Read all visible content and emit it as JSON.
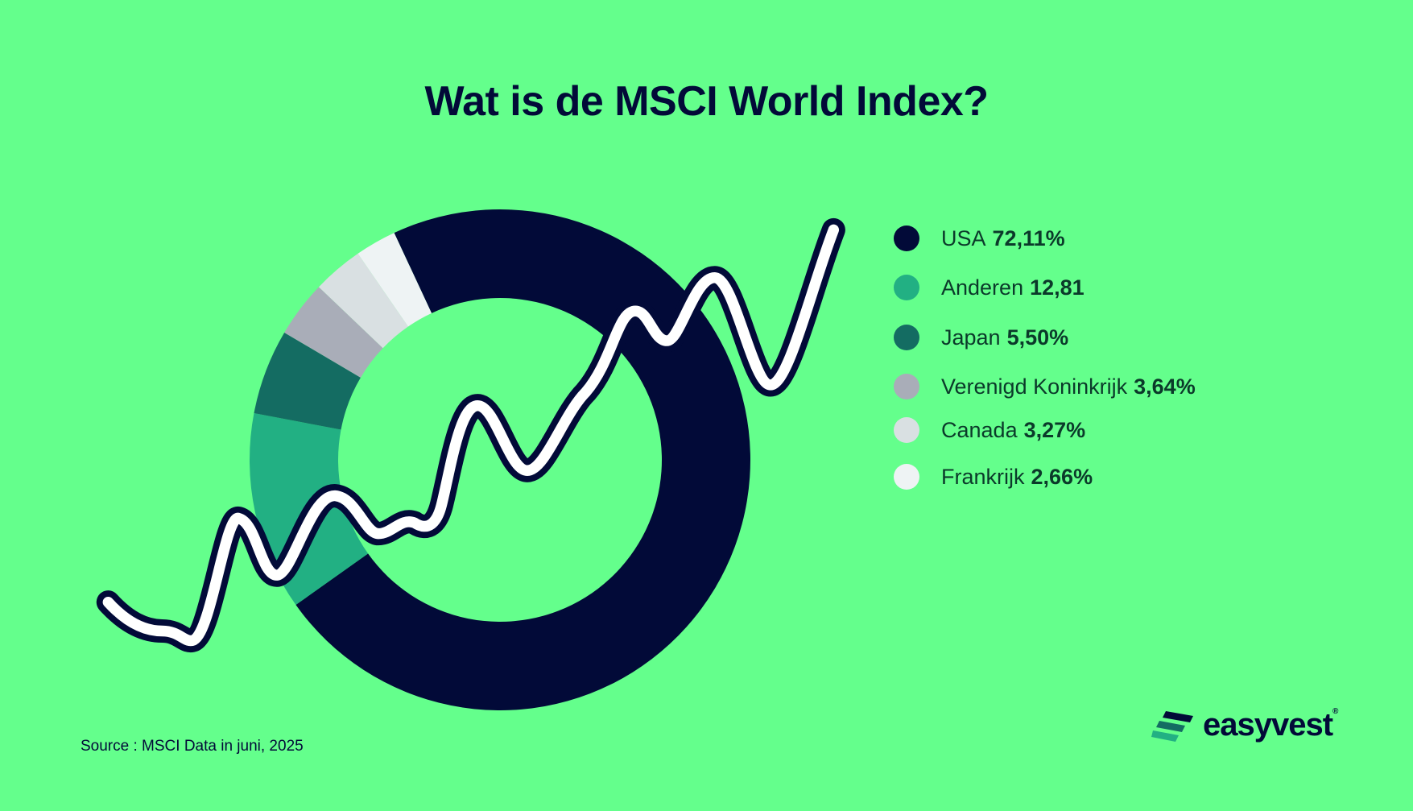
{
  "title": "Wat is de MSCI World Index?",
  "chart_data": {
    "type": "pie",
    "variant": "donut",
    "title": "Wat is de MSCI World Index?",
    "categories": [
      "USA",
      "Anderen",
      "Japan",
      "Verenigd Koninkrijk",
      "Canada",
      "Frankrijk"
    ],
    "values": [
      72.11,
      12.81,
      5.5,
      3.64,
      3.27,
      2.66
    ],
    "value_labels": [
      "72,11%",
      "12,81",
      "5,50%",
      "3,64%",
      "3,27%",
      "2,66%"
    ],
    "colors": [
      "#020a38",
      "#22b083",
      "#146c62",
      "#a9adb8",
      "#d9e0e2",
      "#eef3f4"
    ],
    "legend_position": "right"
  },
  "source": "Source : MSCI Data in juni, 2025",
  "logo": {
    "text": "easyvest",
    "reg": "®"
  },
  "colors": {
    "background": "#64ff8c",
    "navy": "#020a38"
  }
}
